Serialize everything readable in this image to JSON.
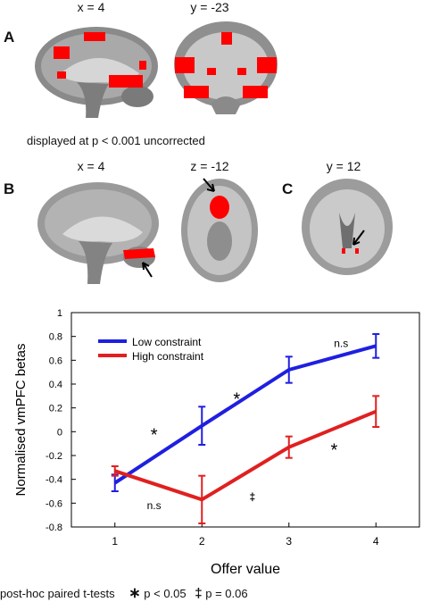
{
  "panel_a": {
    "letter": "A",
    "coord_sagittal": "x = 4",
    "coord_coronal": "y = -23",
    "threshold_note": "displayed at p < 0.001 uncorrected"
  },
  "panel_b": {
    "letter": "B",
    "coord_sagittal": "x = 4",
    "coord_axial": "z = -12"
  },
  "panel_c": {
    "letter": "C",
    "coord_coronal": "y = 12"
  },
  "colors": {
    "low_constraint": "#1f1fe0",
    "high_constraint": "#e02020",
    "activation": "#ff0000"
  },
  "chart_data": {
    "type": "line",
    "ylabel": "Normalised vmPFC betas",
    "xlabel": "Offer value",
    "x": [
      1,
      2,
      3,
      4
    ],
    "xticks": [
      "1",
      "2",
      "3",
      "4"
    ],
    "ylim": [
      -0.8,
      1
    ],
    "yticks": [
      "-0.8",
      "-0.6",
      "-0.4",
      "-0.2",
      "0",
      "0.2",
      "0.4",
      "0.6",
      "0.8",
      "1"
    ],
    "ytick_values": [
      -0.8,
      -0.6,
      -0.4,
      -0.2,
      0,
      0.2,
      0.4,
      0.6,
      0.8,
      1
    ],
    "legend_position": "top-left",
    "series": [
      {
        "name": "Low constraint",
        "color": "#1f1fe0",
        "values": [
          -0.43,
          0.05,
          0.52,
          0.72
        ],
        "errors": [
          0.07,
          0.16,
          0.11,
          0.1
        ]
      },
      {
        "name": "High constraint",
        "color": "#e02020",
        "values": [
          -0.33,
          -0.57,
          -0.13,
          0.17
        ],
        "errors": [
          0.04,
          0.2,
          0.09,
          0.13
        ]
      }
    ],
    "annotations": [
      {
        "text": "*",
        "x": 1.45,
        "y": 0.0
      },
      {
        "text": "*",
        "x": 2.4,
        "y": 0.3
      },
      {
        "text": "n.s",
        "x": 3.6,
        "y": 0.74
      },
      {
        "text": "n.s",
        "x": 1.45,
        "y": -0.62
      },
      {
        "text": "‡",
        "x": 2.58,
        "y": -0.55
      },
      {
        "text": "*",
        "x": 3.52,
        "y": -0.13
      }
    ],
    "footnote": {
      "prefix": "post-hoc paired t-tests",
      "star_symbol": "∗",
      "star_text": "p < 0.05",
      "dagger_symbol": "‡",
      "dagger_text": "p = 0.06"
    }
  }
}
